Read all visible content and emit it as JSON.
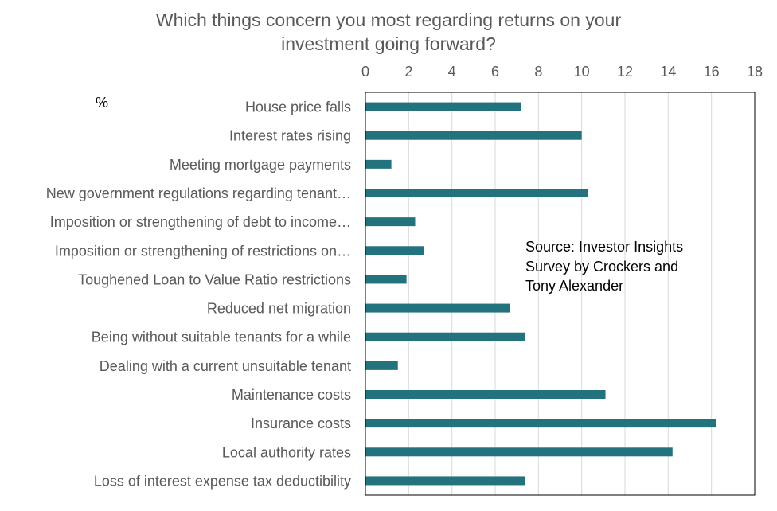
{
  "chart_data": {
    "type": "bar",
    "orientation": "horizontal",
    "title": "Which things concern you most regarding returns on your investment going forward?",
    "title_lines": [
      "Which things concern you most regarding returns on your",
      "investment going forward?"
    ],
    "unit_label": "%",
    "xlim": [
      0,
      18
    ],
    "xticks": [
      0,
      2,
      4,
      6,
      8,
      10,
      12,
      14,
      16,
      18
    ],
    "grid": true,
    "bar_color": "#23737f",
    "categories": [
      "House price falls",
      "Interest rates rising",
      "Meeting mortgage payments",
      "New government regulations regarding tenant…",
      "Imposition or strengthening of debt to income…",
      "Imposition or strengthening of restrictions on…",
      "Toughened Loan to Value Ratio restrictions",
      "Reduced net migration",
      "Being without suitable tenants for a while",
      "Dealing with a current unsuitable tenant",
      "Maintenance costs",
      "Insurance costs",
      "Local authority rates",
      "Loss of interest expense tax deductibility"
    ],
    "values": [
      7.2,
      10.0,
      1.2,
      10.3,
      2.3,
      2.7,
      1.9,
      6.7,
      7.4,
      1.5,
      11.1,
      16.2,
      14.2,
      7.4
    ],
    "annotation_lines": [
      "Source: Investor Insights",
      "Survey by Crockers and",
      "Tony Alexander"
    ]
  }
}
